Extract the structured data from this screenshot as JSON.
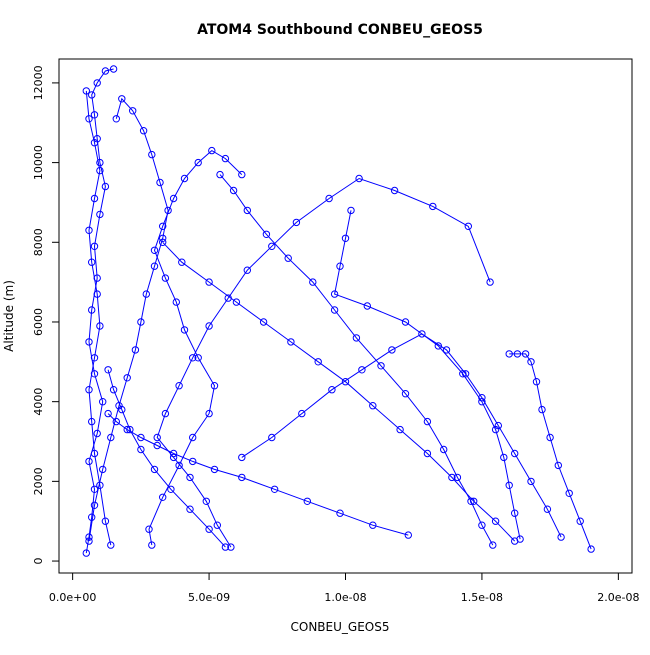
{
  "chart_data": {
    "type": "line",
    "title": "ATOM4 Southbound CONBEU_GEOS5",
    "xlabel": "CONBEU_GEOS5",
    "ylabel": "Altitude (m)",
    "xlim": [
      -5e-10,
      2.05e-08
    ],
    "ylim": [
      -300,
      12600
    ],
    "x_ticks": [
      0,
      5e-09,
      1e-08,
      1.5e-08,
      2e-08
    ],
    "x_tick_labels": [
      "0.0e+00",
      "5.0e-09",
      "1.0e-08",
      "1.5e-08",
      "2.0e-08"
    ],
    "y_ticks": [
      0,
      2000,
      4000,
      6000,
      8000,
      10000,
      12000
    ],
    "y_tick_labels": [
      "0",
      "2000",
      "4000",
      "6000",
      "8000",
      "10000",
      "12000"
    ],
    "marker": "open-circle",
    "color": "#0000ff",
    "series": [
      {
        "x": [
          5e-10,
          6e-10,
          7e-10,
          8e-10,
          6e-10,
          9e-10,
          1.1e-09,
          8e-10,
          6e-10,
          7e-10,
          9e-10,
          8e-10,
          1e-09,
          1.2e-09,
          1e-09,
          9e-10,
          8e-10,
          7e-10,
          9e-10,
          1.2e-09,
          1.5e-09
        ],
        "y": [
          200,
          600,
          1100,
          1800,
          2500,
          3200,
          4000,
          4700,
          5500,
          6300,
          7100,
          7900,
          8700,
          9400,
          10000,
          10600,
          11200,
          11700,
          12000,
          12300,
          12350
        ]
      },
      {
        "x": [
          1.4e-09,
          1.2e-09,
          1e-09,
          8e-10,
          7e-10,
          6e-10,
          8e-10,
          1e-09,
          9e-10,
          7e-10,
          6e-10,
          8e-10,
          1e-09,
          8e-10,
          6e-10,
          5e-10
        ],
        "y": [
          400,
          1000,
          1900,
          2700,
          3500,
          4300,
          5100,
          5900,
          6700,
          7500,
          8300,
          9100,
          9800,
          10500,
          11100,
          11800
        ]
      },
      {
        "x": [
          6e-10,
          8e-10,
          1.1e-09,
          1.4e-09,
          1.7e-09,
          2e-09,
          2.3e-09,
          2.5e-09,
          2.7e-09,
          3e-09,
          3.3e-09,
          3.5e-09,
          3.2e-09,
          2.9e-09,
          2.6e-09,
          2.2e-09,
          1.8e-09,
          1.6e-09
        ],
        "y": [
          500,
          1400,
          2300,
          3100,
          3900,
          4600,
          5300,
          6000,
          6700,
          7400,
          8100,
          8800,
          9500,
          10200,
          10800,
          11300,
          11600,
          11100
        ]
      },
      {
        "x": [
          2.9e-09,
          2.8e-09,
          3.3e-09,
          3.9e-09,
          4.4e-09,
          5e-09,
          5.2e-09,
          4.6e-09,
          4.1e-09,
          3.8e-09,
          3.4e-09,
          3e-09,
          3.3e-09,
          3.7e-09,
          4.1e-09,
          4.6e-09,
          5.1e-09,
          5.6e-09,
          6.2e-09
        ],
        "y": [
          400,
          800,
          1600,
          2400,
          3100,
          3700,
          4400,
          5100,
          5800,
          6500,
          7100,
          7800,
          8400,
          9100,
          9600,
          10000,
          10300,
          10100,
          9700
        ]
      },
      {
        "x": [
          5.8e-09,
          5.3e-09,
          4.9e-09,
          4.3e-09,
          3.7e-09,
          3.1e-09,
          3.4e-09,
          3.9e-09,
          4.4e-09,
          5e-09,
          5.7e-09,
          6.4e-09,
          7.3e-09,
          8.2e-09,
          9.4e-09,
          1.05e-08,
          1.18e-08,
          1.32e-08,
          1.45e-08,
          1.53e-08
        ],
        "y": [
          350,
          900,
          1500,
          2100,
          2600,
          3100,
          3700,
          4400,
          5100,
          5900,
          6600,
          7300,
          7900,
          8500,
          9100,
          9600,
          9300,
          8900,
          8400,
          7000
        ]
      },
      {
        "x": [
          1.54e-08,
          1.5e-08,
          1.46e-08,
          1.41e-08,
          1.36e-08,
          1.3e-08,
          1.22e-08,
          1.13e-08,
          1.04e-08,
          9.6e-09,
          8.8e-09,
          7.9e-09,
          7.1e-09,
          6.4e-09,
          5.9e-09,
          5.4e-09
        ],
        "y": [
          400,
          900,
          1500,
          2100,
          2800,
          3500,
          4200,
          4900,
          5600,
          6300,
          7000,
          7600,
          8200,
          8800,
          9300,
          9700
        ]
      },
      {
        "x": [
          1.64e-08,
          1.62e-08,
          1.6e-08,
          1.58e-08,
          1.55e-08,
          1.5e-08,
          1.43e-08,
          1.34e-08,
          1.22e-08,
          1.08e-08,
          9.6e-09,
          9.8e-09,
          1e-08,
          1.02e-08
        ],
        "y": [
          550,
          1200,
          1900,
          2600,
          3300,
          4000,
          4700,
          5400,
          6000,
          6400,
          6700,
          7400,
          8100,
          8800
        ]
      },
      {
        "x": [
          1.9e-08,
          1.86e-08,
          1.82e-08,
          1.78e-08,
          1.75e-08,
          1.72e-08,
          1.7e-08,
          1.68e-08,
          1.66e-08,
          1.63e-08,
          1.6e-08
        ],
        "y": [
          300,
          1000,
          1700,
          2400,
          3100,
          3800,
          4500,
          5000,
          5200,
          5200,
          5200
        ]
      },
      {
        "x": [
          1.79e-08,
          1.74e-08,
          1.68e-08,
          1.62e-08,
          1.56e-08,
          1.5e-08,
          1.44e-08,
          1.37e-08,
          1.28e-08,
          1.17e-08,
          1.06e-08,
          9.5e-09,
          8.4e-09,
          7.3e-09,
          6.2e-09
        ],
        "y": [
          600,
          1300,
          2000,
          2700,
          3400,
          4100,
          4700,
          5300,
          5700,
          5300,
          4800,
          4300,
          3700,
          3100,
          2600
        ]
      },
      {
        "x": [
          1.23e-08,
          1.1e-08,
          9.8e-09,
          8.6e-09,
          7.4e-09,
          6.2e-09,
          5.2e-09,
          4.4e-09,
          3.7e-09,
          3.1e-09,
          2.5e-09,
          2e-09,
          1.6e-09,
          1.3e-09
        ],
        "y": [
          650,
          900,
          1200,
          1500,
          1800,
          2100,
          2300,
          2500,
          2700,
          2900,
          3100,
          3300,
          3500,
          3700
        ]
      },
      {
        "x": [
          1.62e-08,
          1.55e-08,
          1.47e-08,
          1.39e-08,
          1.3e-08,
          1.2e-08,
          1.1e-08,
          1e-08,
          9e-09,
          8e-09,
          7e-09,
          6e-09,
          5e-09,
          4e-09,
          3.3e-09
        ],
        "y": [
          500,
          1000,
          1500,
          2100,
          2700,
          3300,
          3900,
          4500,
          5000,
          5500,
          6000,
          6500,
          7000,
          7500,
          8000
        ]
      },
      {
        "x": [
          5.6e-09,
          5e-09,
          4.3e-09,
          3.6e-09,
          3e-09,
          2.5e-09,
          2.1e-09,
          1.8e-09,
          1.5e-09,
          1.3e-09
        ],
        "y": [
          350,
          800,
          1300,
          1800,
          2300,
          2800,
          3300,
          3800,
          4300,
          4800
        ]
      }
    ]
  }
}
